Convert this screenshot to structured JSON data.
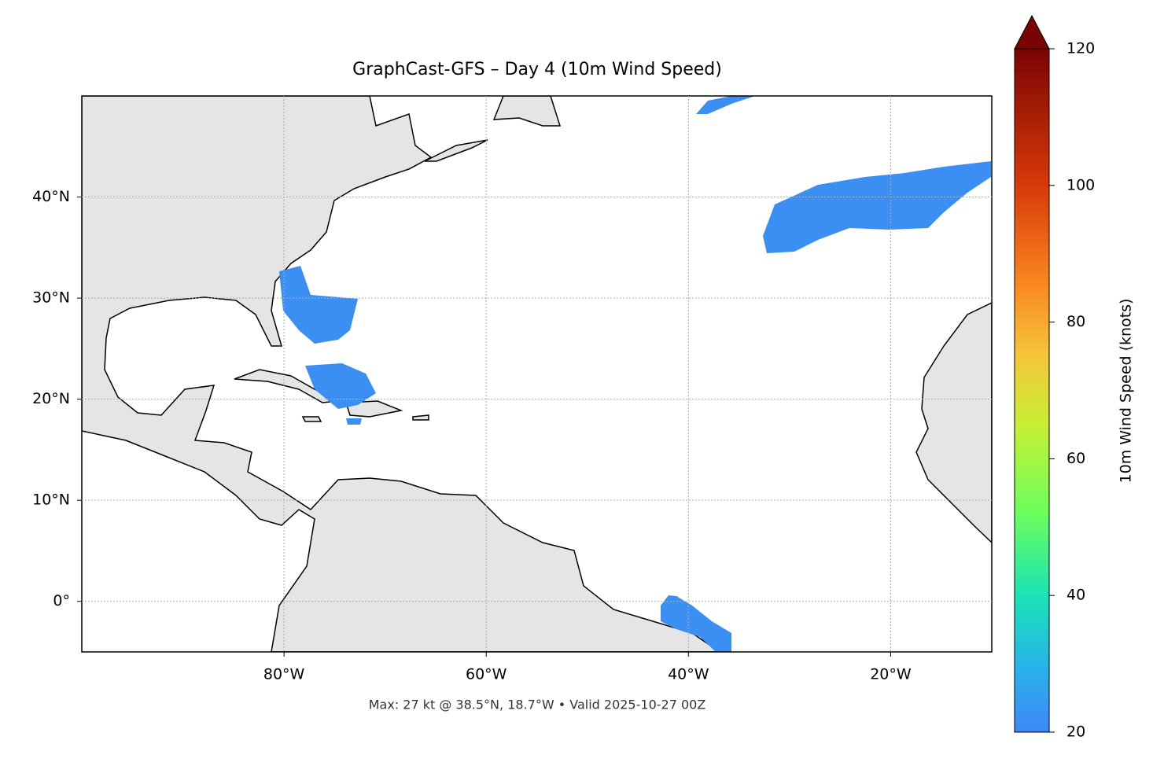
{
  "chart_data": {
    "type": "map",
    "title": "GraphCast-GFS – Day 4 (10m Wind Speed)",
    "caption": "Max: 27 kt @ 38.5°N, 18.7°W • Valid 2025-10-27 00Z",
    "xlim": [
      -100,
      -10
    ],
    "ylim": [
      -5,
      50
    ],
    "xticks": [
      {
        "value": -80,
        "label": "80°W"
      },
      {
        "value": -60,
        "label": "60°W"
      },
      {
        "value": -40,
        "label": "40°W"
      },
      {
        "value": -20,
        "label": "20°W"
      }
    ],
    "yticks": [
      {
        "value": 0,
        "label": "0°"
      },
      {
        "value": 10,
        "label": "10°N"
      },
      {
        "value": 20,
        "label": "20°N"
      },
      {
        "value": 30,
        "label": "30°N"
      },
      {
        "value": 40,
        "label": "40°N"
      }
    ],
    "grid": true,
    "colorbar": {
      "label": "10m Wind Speed (knots)",
      "lim": [
        20,
        120
      ],
      "ticks": [
        20,
        40,
        60,
        80,
        100,
        120
      ]
    }
  }
}
